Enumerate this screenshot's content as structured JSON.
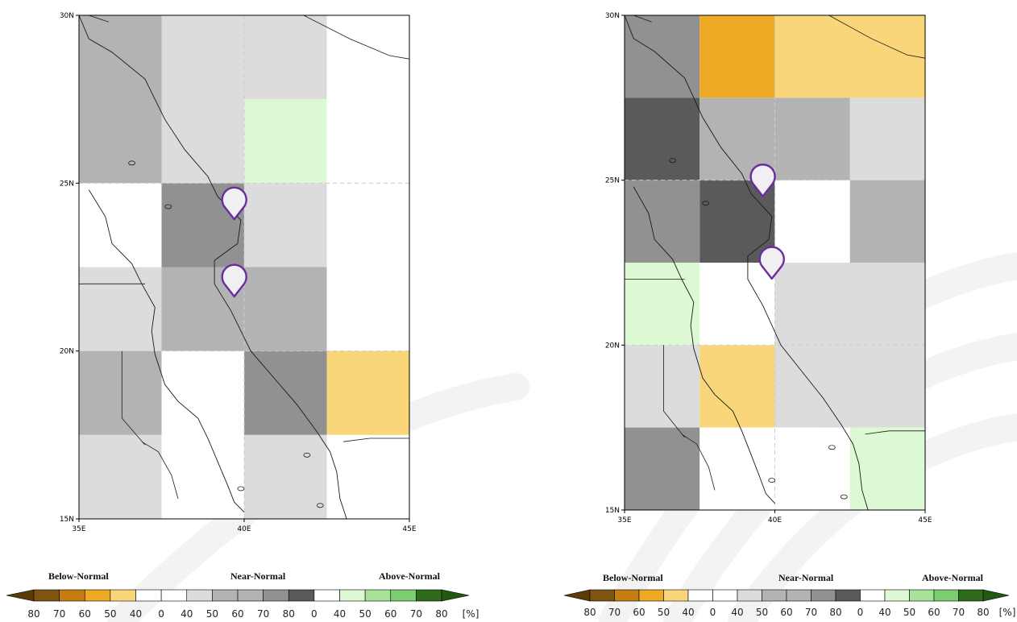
{
  "maps": [
    {
      "id": "map-left",
      "lat_ticks": [
        "30N",
        "25N",
        "20N",
        "15N"
      ],
      "lon_ticks": [
        "35E",
        "40E",
        "45E"
      ],
      "cells": [
        {
          "lon": [
            35,
            37.5
          ],
          "lat": [
            25,
            30
          ],
          "category": "near-normal-60"
        },
        {
          "lon": [
            37.5,
            40
          ],
          "lat": [
            25,
            30
          ],
          "category": "near-normal-50"
        },
        {
          "lon": [
            40,
            42.5
          ],
          "lat": [
            27.5,
            30
          ],
          "category": "near-normal-50"
        },
        {
          "lon": [
            40,
            42.5
          ],
          "lat": [
            25,
            27.5
          ],
          "category": "above-normal-40"
        },
        {
          "lon": [
            42.5,
            45
          ],
          "lat": [
            25,
            30
          ],
          "category": "white"
        },
        {
          "lon": [
            35,
            37.5
          ],
          "lat": [
            22.5,
            25
          ],
          "category": "white"
        },
        {
          "lon": [
            37.5,
            40
          ],
          "lat": [
            22.5,
            25
          ],
          "category": "near-normal-70"
        },
        {
          "lon": [
            40,
            42.5
          ],
          "lat": [
            22.5,
            25
          ],
          "category": "near-normal-50"
        },
        {
          "lon": [
            42.5,
            45
          ],
          "lat": [
            22.5,
            25
          ],
          "category": "white"
        },
        {
          "lon": [
            35,
            37.5
          ],
          "lat": [
            20,
            22.5
          ],
          "category": "near-normal-50"
        },
        {
          "lon": [
            37.5,
            40
          ],
          "lat": [
            20,
            22.5
          ],
          "category": "near-normal-60"
        },
        {
          "lon": [
            40,
            42.5
          ],
          "lat": [
            20,
            22.5
          ],
          "category": "near-normal-60"
        },
        {
          "lon": [
            42.5,
            45
          ],
          "lat": [
            20,
            22.5
          ],
          "category": "white"
        },
        {
          "lon": [
            35,
            37.5
          ],
          "lat": [
            17.5,
            20
          ],
          "category": "near-normal-60"
        },
        {
          "lon": [
            37.5,
            40
          ],
          "lat": [
            17.5,
            20
          ],
          "category": "white"
        },
        {
          "lon": [
            40,
            42.5
          ],
          "lat": [
            17.5,
            20
          ],
          "category": "near-normal-70"
        },
        {
          "lon": [
            42.5,
            45
          ],
          "lat": [
            17.5,
            20
          ],
          "category": "below-normal-40"
        },
        {
          "lon": [
            35,
            37.5
          ],
          "lat": [
            15,
            17.5
          ],
          "category": "near-normal-50"
        },
        {
          "lon": [
            37.5,
            40
          ],
          "lat": [
            15,
            17.5
          ],
          "category": "white"
        },
        {
          "lon": [
            40,
            42.5
          ],
          "lat": [
            15,
            17.5
          ],
          "category": "near-normal-50"
        },
        {
          "lon": [
            42.5,
            45
          ],
          "lat": [
            15,
            17.5
          ],
          "category": "white"
        }
      ],
      "markers": [
        {
          "name": "map-pin-north",
          "lon": 39.7,
          "lat": 24.5
        },
        {
          "name": "map-pin-south",
          "lon": 39.7,
          "lat": 22.2
        }
      ]
    },
    {
      "id": "map-right",
      "lat_ticks": [
        "30N",
        "25N",
        "20N",
        "15N"
      ],
      "lon_ticks": [
        "35E",
        "40E",
        "45E"
      ],
      "cells": [
        {
          "lon": [
            35,
            37.5
          ],
          "lat": [
            27.5,
            30
          ],
          "category": "near-normal-70"
        },
        {
          "lon": [
            37.5,
            40
          ],
          "lat": [
            27.5,
            30
          ],
          "category": "below-normal-60"
        },
        {
          "lon": [
            40,
            45
          ],
          "lat": [
            27.5,
            30
          ],
          "category": "below-normal-40"
        },
        {
          "lon": [
            35,
            37.5
          ],
          "lat": [
            25,
            27.5
          ],
          "category": "near-normal-80"
        },
        {
          "lon": [
            37.5,
            40
          ],
          "lat": [
            25,
            27.5
          ],
          "category": "near-normal-60"
        },
        {
          "lon": [
            40,
            42.5
          ],
          "lat": [
            25,
            27.5
          ],
          "category": "near-normal-60"
        },
        {
          "lon": [
            42.5,
            45
          ],
          "lat": [
            25,
            27.5
          ],
          "category": "near-normal-50"
        },
        {
          "lon": [
            35,
            37.5
          ],
          "lat": [
            22.5,
            25
          ],
          "category": "near-normal-70"
        },
        {
          "lon": [
            37.5,
            40
          ],
          "lat": [
            22.5,
            25
          ],
          "category": "near-normal-80"
        },
        {
          "lon": [
            40,
            42.5
          ],
          "lat": [
            22.5,
            25
          ],
          "category": "white"
        },
        {
          "lon": [
            42.5,
            45
          ],
          "lat": [
            22.5,
            25
          ],
          "category": "near-normal-60"
        },
        {
          "lon": [
            35,
            37.5
          ],
          "lat": [
            20,
            22.5
          ],
          "category": "above-normal-40"
        },
        {
          "lon": [
            37.5,
            40
          ],
          "lat": [
            20,
            22.5
          ],
          "category": "white"
        },
        {
          "lon": [
            40,
            45
          ],
          "lat": [
            20,
            22.5
          ],
          "category": "near-normal-50"
        },
        {
          "lon": [
            35,
            37.5
          ],
          "lat": [
            17.5,
            20
          ],
          "category": "near-normal-50"
        },
        {
          "lon": [
            37.5,
            40
          ],
          "lat": [
            17.5,
            20
          ],
          "category": "below-normal-40"
        },
        {
          "lon": [
            40,
            45
          ],
          "lat": [
            17.5,
            20
          ],
          "category": "near-normal-50"
        },
        {
          "lon": [
            35,
            37.5
          ],
          "lat": [
            15,
            17.5
          ],
          "category": "near-normal-70"
        },
        {
          "lon": [
            37.5,
            42.5
          ],
          "lat": [
            15,
            17.5
          ],
          "category": "white"
        },
        {
          "lon": [
            42.5,
            45
          ],
          "lat": [
            15,
            17.5
          ],
          "category": "above-normal-40"
        }
      ],
      "markers": [
        {
          "name": "map-pin-north",
          "lon": 39.6,
          "lat": 25.1
        },
        {
          "name": "map-pin-south",
          "lon": 39.9,
          "lat": 22.6
        }
      ]
    }
  ],
  "palette": {
    "below-normal-80": "#7d5410",
    "below-normal-70": "#c47d12",
    "below-normal-60": "#eeaa25",
    "below-normal-40": "#f9d67a",
    "white": "#ffffff",
    "near-normal-50": "#dcdcdc",
    "near-normal-60": "#b2b3b2",
    "near-normal-70": "#919191",
    "near-normal-80": "#5a5a5a",
    "above-normal-40": "#ddf9d4",
    "above-normal-50": "#a6e29a",
    "above-normal-60": "#7ccc72",
    "above-normal-70": "#2e6b1d",
    "coast": "#1a1a1a",
    "grid": "#cccccc",
    "marker_outline": "#6a2d9e",
    "marker_fill": "#f0f0f2",
    "watermark": "#f3f3f3"
  },
  "legend": {
    "categories": [
      "Below-Normal",
      "Near-Normal",
      "Above-Normal"
    ],
    "unit": "[%]",
    "swatches": [
      "below-normal-80",
      "below-normal-70",
      "below-normal-60",
      "below-normal-40",
      "white",
      "white",
      "near-normal-50",
      "near-normal-60",
      "near-normal-60",
      "near-normal-70",
      "near-normal-80",
      "white",
      "above-normal-40",
      "above-normal-50",
      "above-normal-60",
      "above-normal-70"
    ],
    "tick_labels": [
      "80",
      "70",
      "60",
      "50",
      "40",
      "0",
      "40",
      "50",
      "60",
      "70",
      "80",
      "0",
      "40",
      "50",
      "60",
      "70",
      "80"
    ]
  }
}
